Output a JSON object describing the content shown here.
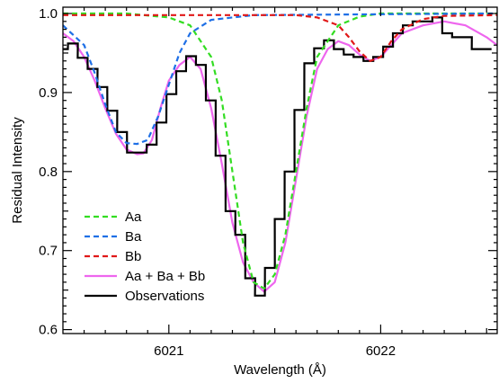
{
  "chart_data": {
    "type": "line",
    "title": "",
    "xlabel": "Wavelength (Å)",
    "ylabel": "Residual Intensity",
    "xlim": [
      6020.5,
      6022.55
    ],
    "ylim": [
      0.595,
      1.008
    ],
    "x_ticks": [
      6021,
      6022
    ],
    "x_tick_labels": [
      "6021",
      "6022"
    ],
    "y_ticks": [
      0.6,
      0.7,
      0.8,
      0.9,
      1.0
    ],
    "y_tick_labels": [
      "0.6",
      "0.7",
      "0.8",
      "0.9",
      "1.0"
    ],
    "grid": false,
    "legend_position": "bottom-left",
    "series": [
      {
        "name": "Aa",
        "style": "dashed",
        "color": "#33dd22",
        "x": [
          6020.5,
          6020.8,
          6021.0,
          6021.1,
          6021.2,
          6021.25,
          6021.3,
          6021.35,
          6021.4,
          6021.45,
          6021.5,
          6021.55,
          6021.6,
          6021.65,
          6021.7,
          6021.8,
          6021.9,
          6022.0,
          6022.2,
          6022.55
        ],
        "y": [
          1.0,
          1.0,
          0.995,
          0.985,
          0.945,
          0.89,
          0.8,
          0.71,
          0.66,
          0.652,
          0.67,
          0.72,
          0.8,
          0.88,
          0.945,
          0.985,
          0.996,
          1.0,
          1.0,
          1.0
        ]
      },
      {
        "name": "Ba",
        "style": "dashed",
        "color": "#1e6fe6",
        "x": [
          6020.5,
          6020.6,
          6020.65,
          6020.7,
          6020.75,
          6020.8,
          6020.85,
          6020.9,
          6020.95,
          6021.0,
          6021.05,
          6021.1,
          6021.2,
          6021.4,
          6022.55
        ],
        "y": [
          0.985,
          0.96,
          0.925,
          0.885,
          0.85,
          0.836,
          0.835,
          0.84,
          0.87,
          0.91,
          0.95,
          0.975,
          0.992,
          0.998,
          1.0
        ]
      },
      {
        "name": "Bb",
        "style": "dashed",
        "color": "#e01818",
        "x": [
          6020.5,
          6021.6,
          6021.7,
          6021.8,
          6021.85,
          6021.9,
          6021.95,
          6022.0,
          6022.05,
          6022.1,
          6022.2,
          6022.3,
          6022.55
        ],
        "y": [
          0.998,
          0.998,
          0.995,
          0.985,
          0.97,
          0.952,
          0.94,
          0.945,
          0.965,
          0.98,
          0.993,
          0.997,
          0.998
        ]
      },
      {
        "name": "Aa + Ba + Bb",
        "style": "solid",
        "color": "#ee66ee",
        "x": [
          6020.5,
          6020.55,
          6020.6,
          6020.65,
          6020.7,
          6020.75,
          6020.8,
          6020.85,
          6020.88,
          6020.92,
          6020.96,
          6021.0,
          6021.05,
          6021.1,
          6021.15,
          6021.2,
          6021.25,
          6021.3,
          6021.35,
          6021.4,
          6021.45,
          6021.5,
          6021.55,
          6021.6,
          6021.65,
          6021.7,
          6021.75,
          6021.8,
          6021.85,
          6021.9,
          6021.95,
          6022.0,
          6022.05,
          6022.1,
          6022.2,
          6022.3,
          6022.4,
          6022.5,
          6022.55
        ],
        "y": [
          0.975,
          0.965,
          0.945,
          0.915,
          0.88,
          0.848,
          0.828,
          0.822,
          0.823,
          0.84,
          0.88,
          0.915,
          0.935,
          0.945,
          0.93,
          0.88,
          0.81,
          0.735,
          0.685,
          0.66,
          0.648,
          0.66,
          0.71,
          0.79,
          0.87,
          0.93,
          0.955,
          0.965,
          0.96,
          0.948,
          0.94,
          0.945,
          0.96,
          0.975,
          0.985,
          0.99,
          0.985,
          0.97,
          0.96
        ]
      },
      {
        "name": "Observations",
        "style": "step",
        "color": "#000000",
        "bin_width": 0.0465,
        "x": [
          6020.5,
          6020.547,
          6020.593,
          6020.64,
          6020.686,
          6020.733,
          6020.779,
          6020.826,
          6020.872,
          6020.919,
          6020.965,
          6021.012,
          6021.058,
          6021.105,
          6021.151,
          6021.198,
          6021.244,
          6021.291,
          6021.337,
          6021.384,
          6021.43,
          6021.477,
          6021.523,
          6021.57,
          6021.616,
          6021.663,
          6021.709,
          6021.756,
          6021.802,
          6021.849,
          6021.895,
          6021.942,
          6021.988,
          6022.035,
          6022.081,
          6022.128,
          6022.174,
          6022.221,
          6022.267,
          6022.314,
          6022.36,
          6022.407,
          6022.453,
          6022.5
        ],
        "y": [
          0.955,
          0.962,
          0.944,
          0.93,
          0.907,
          0.877,
          0.85,
          0.824,
          0.824,
          0.834,
          0.862,
          0.898,
          0.927,
          0.946,
          0.935,
          0.89,
          0.82,
          0.75,
          0.72,
          0.665,
          0.643,
          0.678,
          0.74,
          0.8,
          0.878,
          0.937,
          0.956,
          0.966,
          0.955,
          0.948,
          0.945,
          0.94,
          0.945,
          0.958,
          0.975,
          0.985,
          0.99,
          0.99,
          0.995,
          0.975,
          0.97,
          0.97,
          0.955,
          0.955
        ]
      }
    ]
  }
}
